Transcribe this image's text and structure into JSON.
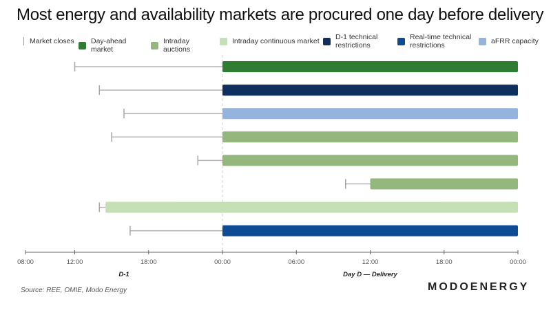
{
  "title": "Most energy and availability markets are procured one day before delivery",
  "source": "Source: REE, OMIE, Modo Energy",
  "brand": "MODOENERGY",
  "legend": [
    {
      "label": "Market closes",
      "type": "tick",
      "color": "#a6a6a6"
    },
    {
      "label": "Day-ahead market",
      "type": "box",
      "color": "#2e7d32"
    },
    {
      "label": "Intraday auctions",
      "type": "box",
      "color": "#93b77d"
    },
    {
      "label": "Intraday continuous market",
      "type": "box",
      "color": "#c5e0b4"
    },
    {
      "label": "D-1 technical restrictions",
      "type": "box",
      "color": "#0f2f5f"
    },
    {
      "label": "Real-time technical restrictions",
      "type": "box",
      "color": "#0d4b94"
    },
    {
      "label": "aFRR capacity",
      "type": "box",
      "color": "#94b3dd"
    }
  ],
  "chart_data": {
    "type": "gantt",
    "title": "Most energy and availability markets are procured one day before delivery",
    "x_unit": "hours since 00:00 of D-1",
    "xlim": [
      8,
      48
    ],
    "ticks": [
      {
        "value": 8,
        "label": "08:00"
      },
      {
        "value": 12,
        "label": "12:00"
      },
      {
        "value": 18,
        "label": "18:00"
      },
      {
        "value": 24,
        "label": "00:00"
      },
      {
        "value": 30,
        "label": "06:00"
      },
      {
        "value": 36,
        "label": "12:00"
      },
      {
        "value": 42,
        "label": "18:00"
      },
      {
        "value": 48,
        "label": "00:00"
      }
    ],
    "day_labels": [
      {
        "value": 16,
        "label": "D-1"
      },
      {
        "value": 36,
        "label": "Day D — Delivery"
      }
    ],
    "divider": 24,
    "rows": [
      {
        "market": "Day-ahead market",
        "close": 12,
        "start": 24,
        "end": 48,
        "color": "#2e7d32"
      },
      {
        "market": "D-1 technical restrictions",
        "close": 14,
        "start": 24,
        "end": 48,
        "color": "#0f2f5f"
      },
      {
        "market": "aFRR capacity",
        "close": 16,
        "start": 24,
        "end": 48,
        "color": "#94b3dd"
      },
      {
        "market": "Intraday auctions",
        "close": 15,
        "start": 24,
        "end": 48,
        "color": "#93b77d"
      },
      {
        "market": "Intraday auctions",
        "close": 22,
        "start": 24,
        "end": 48,
        "color": "#93b77d"
      },
      {
        "market": "Intraday auctions",
        "close": 34,
        "start": 36,
        "end": 48,
        "color": "#93b77d"
      },
      {
        "market": "Intraday continuous market",
        "close": 14,
        "start": 14.5,
        "end": 48,
        "color": "#c5e0b4"
      },
      {
        "market": "Real-time technical restrictions",
        "close": 16.5,
        "start": 24,
        "end": 48,
        "color": "#0d4b94"
      }
    ]
  }
}
